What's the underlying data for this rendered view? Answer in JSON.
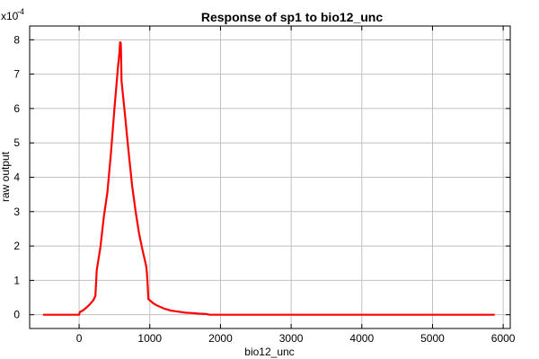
{
  "chart_data": {
    "type": "line",
    "title": "Response of sp1 to bio12_unc",
    "xlabel": "bio12_unc",
    "ylabel": "raw output",
    "y_multiplier_label": "x10",
    "y_multiplier_exponent": "-4",
    "xlim": [
      -700,
      6100
    ],
    "ylim": [
      -0.4,
      8.4
    ],
    "x_ticks": [
      0,
      1000,
      2000,
      3000,
      4000,
      5000,
      6000
    ],
    "x_tick_labels": [
      "0",
      "1000",
      "2000",
      "3000",
      "4000",
      "5000",
      "6000"
    ],
    "y_ticks": [
      0,
      1,
      2,
      3,
      4,
      5,
      6,
      7,
      8
    ],
    "y_tick_labels": [
      "0",
      "1",
      "2",
      "3",
      "4",
      "5",
      "6",
      "7",
      "8"
    ],
    "grid": true,
    "series": [
      {
        "color": "#ff0000",
        "x": [
          -500,
          -300,
          -100,
          0,
          10,
          50,
          100,
          150,
          200,
          230,
          240,
          250,
          300,
          350,
          400,
          450,
          500,
          550,
          570,
          580,
          590,
          595,
          600,
          650,
          700,
          750,
          800,
          850,
          900,
          940,
          950,
          960,
          970,
          980,
          1000,
          1050,
          1100,
          1200,
          1300,
          1400,
          1500,
          1600,
          1700,
          1800,
          1850,
          1900,
          2000,
          3000,
          4000,
          5000,
          5870
        ],
        "y": [
          0.0,
          0.0,
          0.0,
          0.0,
          0.08,
          0.12,
          0.2,
          0.3,
          0.42,
          0.55,
          0.95,
          1.3,
          1.95,
          2.85,
          3.55,
          4.7,
          6.0,
          7.2,
          7.6,
          7.93,
          7.9,
          7.4,
          6.8,
          5.8,
          4.75,
          3.75,
          3.0,
          2.35,
          1.85,
          1.5,
          1.4,
          1.2,
          0.85,
          0.45,
          0.42,
          0.33,
          0.27,
          0.18,
          0.12,
          0.09,
          0.06,
          0.05,
          0.03,
          0.02,
          0.0,
          0.0,
          0.0,
          0.0,
          0.0,
          0.0,
          0.0
        ]
      }
    ]
  }
}
